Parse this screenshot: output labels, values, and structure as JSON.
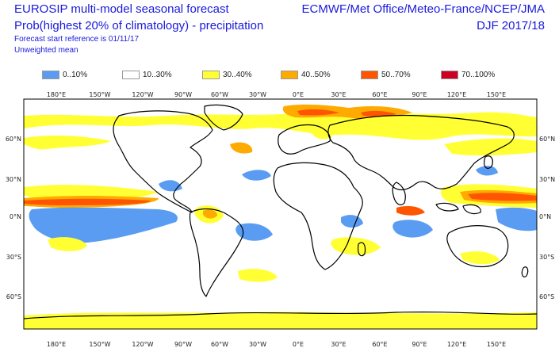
{
  "header": {
    "title_line1": "EUROSIP multi-model seasonal forecast",
    "title_line2": "Prob(highest 20% of climatology) - precipitation",
    "forecast_ref": "Forecast start reference is 01/11/17",
    "weighting": "Unweighted mean",
    "centres": "ECMWF/Met Office/Meteo-France/NCEP/JMA",
    "season": "DJF 2017/18"
  },
  "legend": [
    {
      "label": "0..10%",
      "color": "#5a9cf2"
    },
    {
      "label": "10..30%",
      "color": "#ffffff"
    },
    {
      "label": "30..40%",
      "color": "#ffff33"
    },
    {
      "label": "40..50%",
      "color": "#ffaa00"
    },
    {
      "label": "50..70%",
      "color": "#ff5500"
    },
    {
      "label": "70..100%",
      "color": "#cc0022"
    }
  ],
  "axes": {
    "lon_labels": [
      "180°E",
      "150°W",
      "120°W",
      "90°W",
      "60°W",
      "30°W",
      "0°E",
      "30°E",
      "60°E",
      "90°E",
      "120°E",
      "150°E"
    ],
    "lat_labels": [
      "60°N",
      "30°N",
      "0°N",
      "30°S",
      "60°S"
    ]
  }
}
